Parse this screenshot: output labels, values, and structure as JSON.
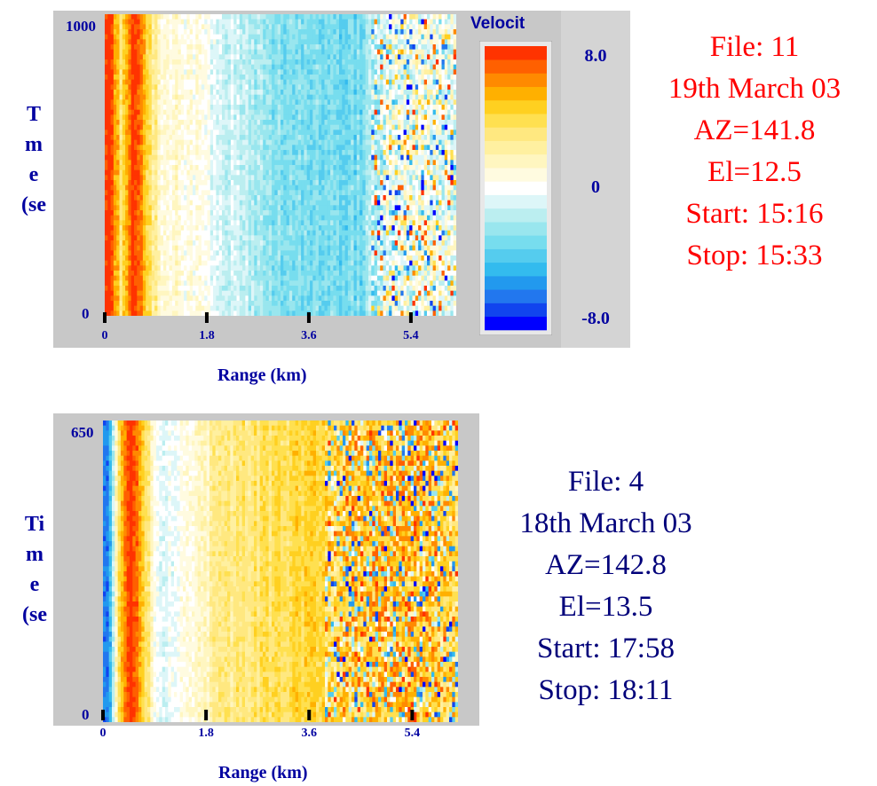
{
  "plot1": {
    "y_axis_label_lines": [
      "T",
      "m",
      "e",
      "(se"
    ],
    "y_tick_top": "1000",
    "y_tick_bottom": "0",
    "x_axis_label": "Range (km)",
    "colorbar": {
      "title": "Velocit",
      "tick_top": "8.0",
      "tick_mid": "0",
      "tick_bottom": "-8.0"
    },
    "info_lines": [
      "File: 11",
      "19th March 03",
      "AZ=141.8",
      "El=12.5",
      "Start: 15:16",
      "Stop: 15:33"
    ],
    "info_color": "#ff0000"
  },
  "plot2": {
    "y_axis_label_lines": [
      "Ti",
      "m",
      "e",
      "(se"
    ],
    "y_tick_top": "650",
    "y_tick_bottom": "0",
    "x_axis_label": "Range (km)",
    "info_lines": [
      "File: 4",
      "18th March 03",
      "AZ=142.8",
      "El=13.5",
      "Start: 17:58",
      "Stop: 18:11"
    ],
    "info_color": "#00007a"
  },
  "colors": {
    "axis_text": "#0000a0",
    "panel_bg": "#c8c8c8",
    "colormap": [
      "#0000ff",
      "#1144ee",
      "#2277ee",
      "#2299ee",
      "#33bbee",
      "#55ccee",
      "#77ddee",
      "#99e6ee",
      "#bbeef0",
      "#ddf6f8",
      "#ffffff",
      "#fffbe0",
      "#fff6c0",
      "#fff0a0",
      "#ffe880",
      "#ffe050",
      "#ffd020",
      "#ffb000",
      "#ff8a00",
      "#ff6000",
      "#ff3300"
    ]
  },
  "chart_data": [
    {
      "type": "heatmap",
      "title": "",
      "xlabel": "Range (km)",
      "ylabel": "T m e (se",
      "x_ticks": [
        "0",
        "1.8",
        "3.6",
        "5.4"
      ],
      "y_ticks": [
        "0",
        "1000"
      ],
      "xlim": [
        0,
        6.2
      ],
      "ylim": [
        0,
        1000
      ],
      "colorbar": {
        "label": "Velocit",
        "ticks": [
          "-8.0",
          "0",
          "8.0"
        ],
        "range": [
          -8.0,
          8.0
        ]
      },
      "profile_range_km": [
        0.1,
        0.3,
        0.5,
        1.0,
        1.5,
        2.0,
        2.5,
        3.0,
        3.5,
        4.0,
        4.5,
        5.0,
        5.5,
        6.0
      ],
      "profile_velocity": [
        8.0,
        3.0,
        8.0,
        1.0,
        0.5,
        -0.5,
        -1.5,
        -2.5,
        -3.0,
        -3.0,
        -3.0,
        0,
        0,
        0
      ],
      "noisy_from_km": 4.7
    },
    {
      "type": "heatmap",
      "title": "",
      "xlabel": "Range (km)",
      "ylabel": "Ti m e (se",
      "x_ticks": [
        "0",
        "1.8",
        "3.6",
        "5.4"
      ],
      "y_ticks": [
        "0",
        "650"
      ],
      "xlim": [
        0,
        6.2
      ],
      "ylim": [
        0,
        650
      ],
      "profile_range_km": [
        0.1,
        0.3,
        0.5,
        1.0,
        1.5,
        2.0,
        2.5,
        3.0,
        3.5,
        4.0,
        4.5,
        5.0,
        5.5,
        6.0
      ],
      "profile_velocity": [
        -6.0,
        5.0,
        8.0,
        -1.0,
        0.5,
        2.5,
        3.0,
        3.5,
        4.0,
        4.0,
        4.5,
        5.0,
        5.0,
        4.0
      ],
      "noisy_from_km": 3.9
    }
  ]
}
